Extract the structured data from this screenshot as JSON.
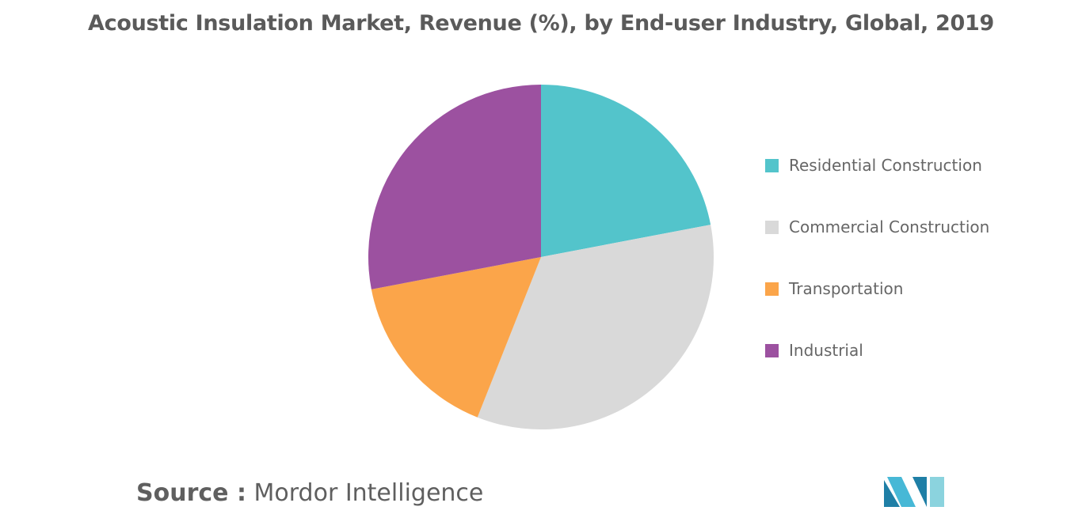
{
  "chart_data": {
    "type": "pie",
    "title": "Acoustic Insulation Market, Revenue (%), by End-user Industry, Global, 2019",
    "categories": [
      "Residential Construction",
      "Commercial Construction",
      "Transportation",
      "Industrial"
    ],
    "values": [
      22,
      34,
      16,
      28
    ],
    "colors": [
      "#53c4cb",
      "#d9d9d9",
      "#fba54a",
      "#9c51a0"
    ],
    "legend_position": "right"
  },
  "source": {
    "label": "Source :",
    "text": "Mordor Intelligence"
  },
  "logo": {
    "icon": "mordor-intelligence-logo",
    "colors": [
      "#1f7fa6",
      "#47b8d6",
      "#8bd3de"
    ]
  }
}
